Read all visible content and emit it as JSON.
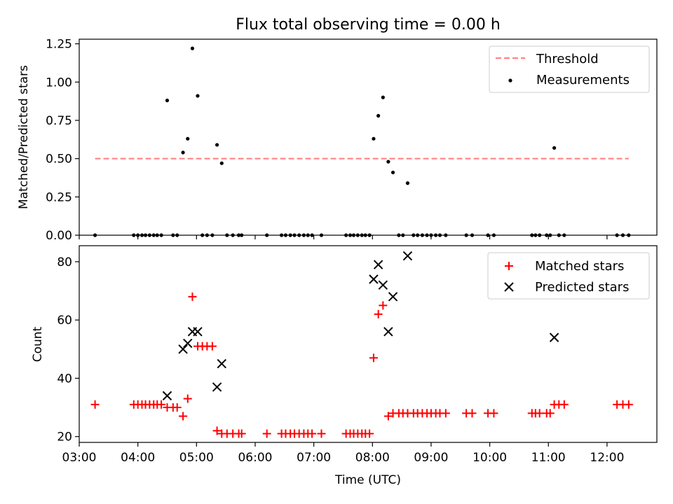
{
  "figure": {
    "title": "Flux total observing time = 0.00 h"
  },
  "chart_data": [
    {
      "type": "scatter",
      "panel": "top",
      "ylabel": "Matched/Predicted stars",
      "ylim": [
        0,
        1.28
      ],
      "yticks": [
        0,
        0.25,
        0.5,
        0.75,
        1.0,
        1.25
      ],
      "ytick_labels": [
        "0.00",
        "0.25",
        "0.50",
        "0.75",
        "1.00",
        "1.25"
      ],
      "xlim_hours": [
        3.0,
        12.85
      ],
      "legend_position": "top-right",
      "threshold": {
        "name": "Threshold",
        "color": "#ff7f7f",
        "value": 0.5,
        "x_range_hours": [
          3.27,
          12.37
        ]
      },
      "series": [
        {
          "name": "Measurements",
          "marker": "dot",
          "color": "#000000",
          "points": [
            [
              3.27,
              0
            ],
            [
              3.93,
              0
            ],
            [
              4.0,
              0
            ],
            [
              4.07,
              0
            ],
            [
              4.13,
              0
            ],
            [
              4.2,
              0
            ],
            [
              4.27,
              0
            ],
            [
              4.33,
              0
            ],
            [
              4.4,
              0
            ],
            [
              4.5,
              0.88
            ],
            [
              4.6,
              0
            ],
            [
              4.67,
              0
            ],
            [
              4.77,
              0.54
            ],
            [
              4.85,
              0.63
            ],
            [
              4.93,
              1.22
            ],
            [
              5.02,
              0.91
            ],
            [
              5.1,
              0
            ],
            [
              5.18,
              0
            ],
            [
              5.27,
              0
            ],
            [
              5.35,
              0.59
            ],
            [
              5.43,
              0.47
            ],
            [
              5.52,
              0
            ],
            [
              5.62,
              0
            ],
            [
              5.72,
              0
            ],
            [
              5.77,
              0
            ],
            [
              6.2,
              0
            ],
            [
              6.45,
              0
            ],
            [
              6.52,
              0
            ],
            [
              6.6,
              0
            ],
            [
              6.67,
              0
            ],
            [
              6.75,
              0
            ],
            [
              6.83,
              0
            ],
            [
              6.9,
              0
            ],
            [
              6.97,
              0
            ],
            [
              7.13,
              0
            ],
            [
              7.55,
              0
            ],
            [
              7.62,
              0
            ],
            [
              7.68,
              0
            ],
            [
              7.75,
              0
            ],
            [
              7.82,
              0
            ],
            [
              7.88,
              0
            ],
            [
              7.95,
              0
            ],
            [
              8.02,
              0.63
            ],
            [
              8.1,
              0.78
            ],
            [
              8.18,
              0.9
            ],
            [
              8.27,
              0.48
            ],
            [
              8.35,
              0.41
            ],
            [
              8.45,
              0
            ],
            [
              8.52,
              0
            ],
            [
              8.6,
              0.34
            ],
            [
              8.7,
              0
            ],
            [
              8.77,
              0
            ],
            [
              8.85,
              0
            ],
            [
              8.93,
              0
            ],
            [
              9.0,
              0
            ],
            [
              9.08,
              0
            ],
            [
              9.15,
              0
            ],
            [
              9.25,
              0
            ],
            [
              9.6,
              0
            ],
            [
              9.7,
              0
            ],
            [
              9.97,
              0
            ],
            [
              10.07,
              0
            ],
            [
              10.72,
              0
            ],
            [
              10.78,
              0
            ],
            [
              10.85,
              0
            ],
            [
              10.97,
              0
            ],
            [
              11.03,
              0
            ],
            [
              11.1,
              0.57
            ],
            [
              11.18,
              0
            ],
            [
              11.27,
              0
            ],
            [
              12.17,
              0
            ],
            [
              12.27,
              0
            ],
            [
              12.37,
              0
            ]
          ]
        }
      ]
    },
    {
      "type": "scatter",
      "panel": "bottom",
      "xlabel": "Time (UTC)",
      "ylabel": "Count",
      "ylim": [
        18,
        85.5
      ],
      "yticks": [
        20,
        40,
        60,
        80
      ],
      "ytick_labels": [
        "20",
        "40",
        "60",
        "80"
      ],
      "xlim_hours": [
        3.0,
        12.85
      ],
      "xticks_hours": [
        3,
        4,
        5,
        6,
        7,
        8,
        9,
        10,
        11,
        12
      ],
      "xtick_labels": [
        "03:00",
        "04:00",
        "05:00",
        "06:00",
        "07:00",
        "08:00",
        "09:00",
        "10:00",
        "11:00",
        "12:00"
      ],
      "legend_position": "top-right",
      "series": [
        {
          "name": "Matched stars",
          "marker": "plus",
          "color": "#ff0000",
          "points": [
            [
              3.27,
              31
            ],
            [
              3.93,
              31
            ],
            [
              4.0,
              31
            ],
            [
              4.07,
              31
            ],
            [
              4.13,
              31
            ],
            [
              4.2,
              31
            ],
            [
              4.27,
              31
            ],
            [
              4.33,
              31
            ],
            [
              4.4,
              31
            ],
            [
              4.5,
              30
            ],
            [
              4.6,
              30
            ],
            [
              4.67,
              30
            ],
            [
              4.77,
              27
            ],
            [
              4.85,
              33
            ],
            [
              4.93,
              68
            ],
            [
              5.02,
              51
            ],
            [
              5.1,
              51
            ],
            [
              5.18,
              51
            ],
            [
              5.27,
              51
            ],
            [
              5.35,
              22
            ],
            [
              5.43,
              21
            ],
            [
              5.52,
              21
            ],
            [
              5.62,
              21
            ],
            [
              5.72,
              21
            ],
            [
              5.77,
              21
            ],
            [
              6.2,
              21
            ],
            [
              6.45,
              21
            ],
            [
              6.52,
              21
            ],
            [
              6.6,
              21
            ],
            [
              6.67,
              21
            ],
            [
              6.75,
              21
            ],
            [
              6.83,
              21
            ],
            [
              6.9,
              21
            ],
            [
              6.97,
              21
            ],
            [
              7.13,
              21
            ],
            [
              7.55,
              21
            ],
            [
              7.62,
              21
            ],
            [
              7.68,
              21
            ],
            [
              7.75,
              21
            ],
            [
              7.82,
              21
            ],
            [
              7.88,
              21
            ],
            [
              7.95,
              21
            ],
            [
              8.02,
              47
            ],
            [
              8.1,
              62
            ],
            [
              8.18,
              65
            ],
            [
              8.27,
              27
            ],
            [
              8.35,
              28
            ],
            [
              8.45,
              28
            ],
            [
              8.52,
              28
            ],
            [
              8.6,
              28
            ],
            [
              8.7,
              28
            ],
            [
              8.77,
              28
            ],
            [
              8.85,
              28
            ],
            [
              8.93,
              28
            ],
            [
              9.0,
              28
            ],
            [
              9.08,
              28
            ],
            [
              9.15,
              28
            ],
            [
              9.25,
              28
            ],
            [
              9.6,
              28
            ],
            [
              9.7,
              28
            ],
            [
              9.97,
              28
            ],
            [
              10.07,
              28
            ],
            [
              10.72,
              28
            ],
            [
              10.78,
              28
            ],
            [
              10.85,
              28
            ],
            [
              10.97,
              28
            ],
            [
              11.03,
              28
            ],
            [
              11.1,
              31
            ],
            [
              11.18,
              31
            ],
            [
              11.27,
              31
            ],
            [
              12.17,
              31
            ],
            [
              12.27,
              31
            ],
            [
              12.37,
              31
            ]
          ]
        },
        {
          "name": "Predicted stars",
          "marker": "x",
          "color": "#000000",
          "points": [
            [
              4.5,
              34
            ],
            [
              4.77,
              50
            ],
            [
              4.85,
              52
            ],
            [
              4.93,
              56
            ],
            [
              5.02,
              56
            ],
            [
              5.35,
              37
            ],
            [
              5.43,
              45
            ],
            [
              8.02,
              74
            ],
            [
              8.1,
              79
            ],
            [
              8.18,
              72
            ],
            [
              8.27,
              56
            ],
            [
              8.35,
              68
            ],
            [
              8.6,
              82
            ],
            [
              11.1,
              54
            ]
          ]
        }
      ]
    }
  ]
}
